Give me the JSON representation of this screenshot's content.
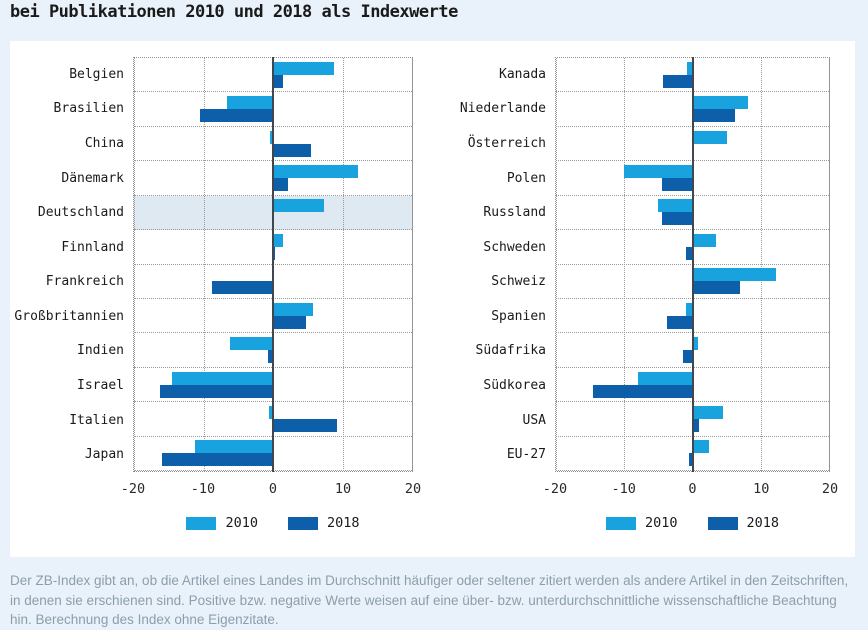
{
  "title": "bei Publikationen 2010 und 2018 als Indexwerte",
  "caption": "Der ZB-Index gibt an, ob die Artikel eines Landes im Durchschnitt häufiger oder seltener zitiert werden als andere Artikel in den Zeitschriften, in denen sie erschienen sind. Positive bzw. negative Werte weisen auf eine über- bzw. unterdurchschnittliche wissenschaftliche Beachtung hin. Berechnung des Index ohne Eigenzitate.",
  "colors": {
    "series_2010": "#18a3df",
    "series_2018": "#0e5fa9",
    "highlight_row": "#dfe9f2",
    "page_background": "#e9f2fa",
    "panel_background": "#ffffff",
    "zero_line": "#40474e",
    "caption_text": "#8d9dab"
  },
  "chart_data": [
    {
      "type": "bar",
      "orientation": "horizontal",
      "title": "",
      "xlabel": "",
      "ylabel": "",
      "xlim": [
        -20,
        20
      ],
      "xticks": [
        -20,
        -10,
        0,
        10,
        20
      ],
      "grid": "dotted",
      "legend_position": "bottom",
      "highlighted_category": "Deutschland",
      "categories": [
        "Belgien",
        "Brasilien",
        "China",
        "Dänemark",
        "Deutschland",
        "Finnland",
        "Frankreich",
        "Großbritannien",
        "Indien",
        "Israel",
        "Italien",
        "Japan"
      ],
      "series": [
        {
          "name": "2010",
          "values": [
            8.8,
            -6.6,
            -0.5,
            12.2,
            7.3,
            1.5,
            0.2,
            5.7,
            -6.2,
            -14.5,
            -0.6,
            -11.2
          ]
        },
        {
          "name": "2018",
          "values": [
            1.5,
            -10.5,
            5.5,
            2.2,
            0,
            0.3,
            -8.8,
            4.8,
            -0.7,
            -16.3,
            9.2,
            -16.0
          ]
        }
      ]
    },
    {
      "type": "bar",
      "orientation": "horizontal",
      "title": "",
      "xlabel": "",
      "ylabel": "",
      "xlim": [
        -20,
        20
      ],
      "xticks": [
        -20,
        -10,
        0,
        10,
        20
      ],
      "grid": "dotted",
      "legend_position": "bottom",
      "highlighted_category": null,
      "categories": [
        "Kanada",
        "Niederlande",
        "Österreich",
        "Polen",
        "Russland",
        "Schweden",
        "Schweiz",
        "Spanien",
        "Südafrika",
        "Südkorea",
        "USA",
        "EU-27"
      ],
      "series": [
        {
          "name": "2010",
          "values": [
            -0.8,
            8.1,
            5.0,
            -10.0,
            -5.1,
            3.4,
            12.3,
            -1.0,
            0.8,
            -8.0,
            4.4,
            2.4
          ]
        },
        {
          "name": "2018",
          "values": [
            -4.3,
            6.3,
            0,
            -4.4,
            -4.4,
            -0.9,
            7.0,
            -3.8,
            -1.4,
            -14.6,
            0.9,
            -0.5
          ]
        }
      ]
    }
  ]
}
